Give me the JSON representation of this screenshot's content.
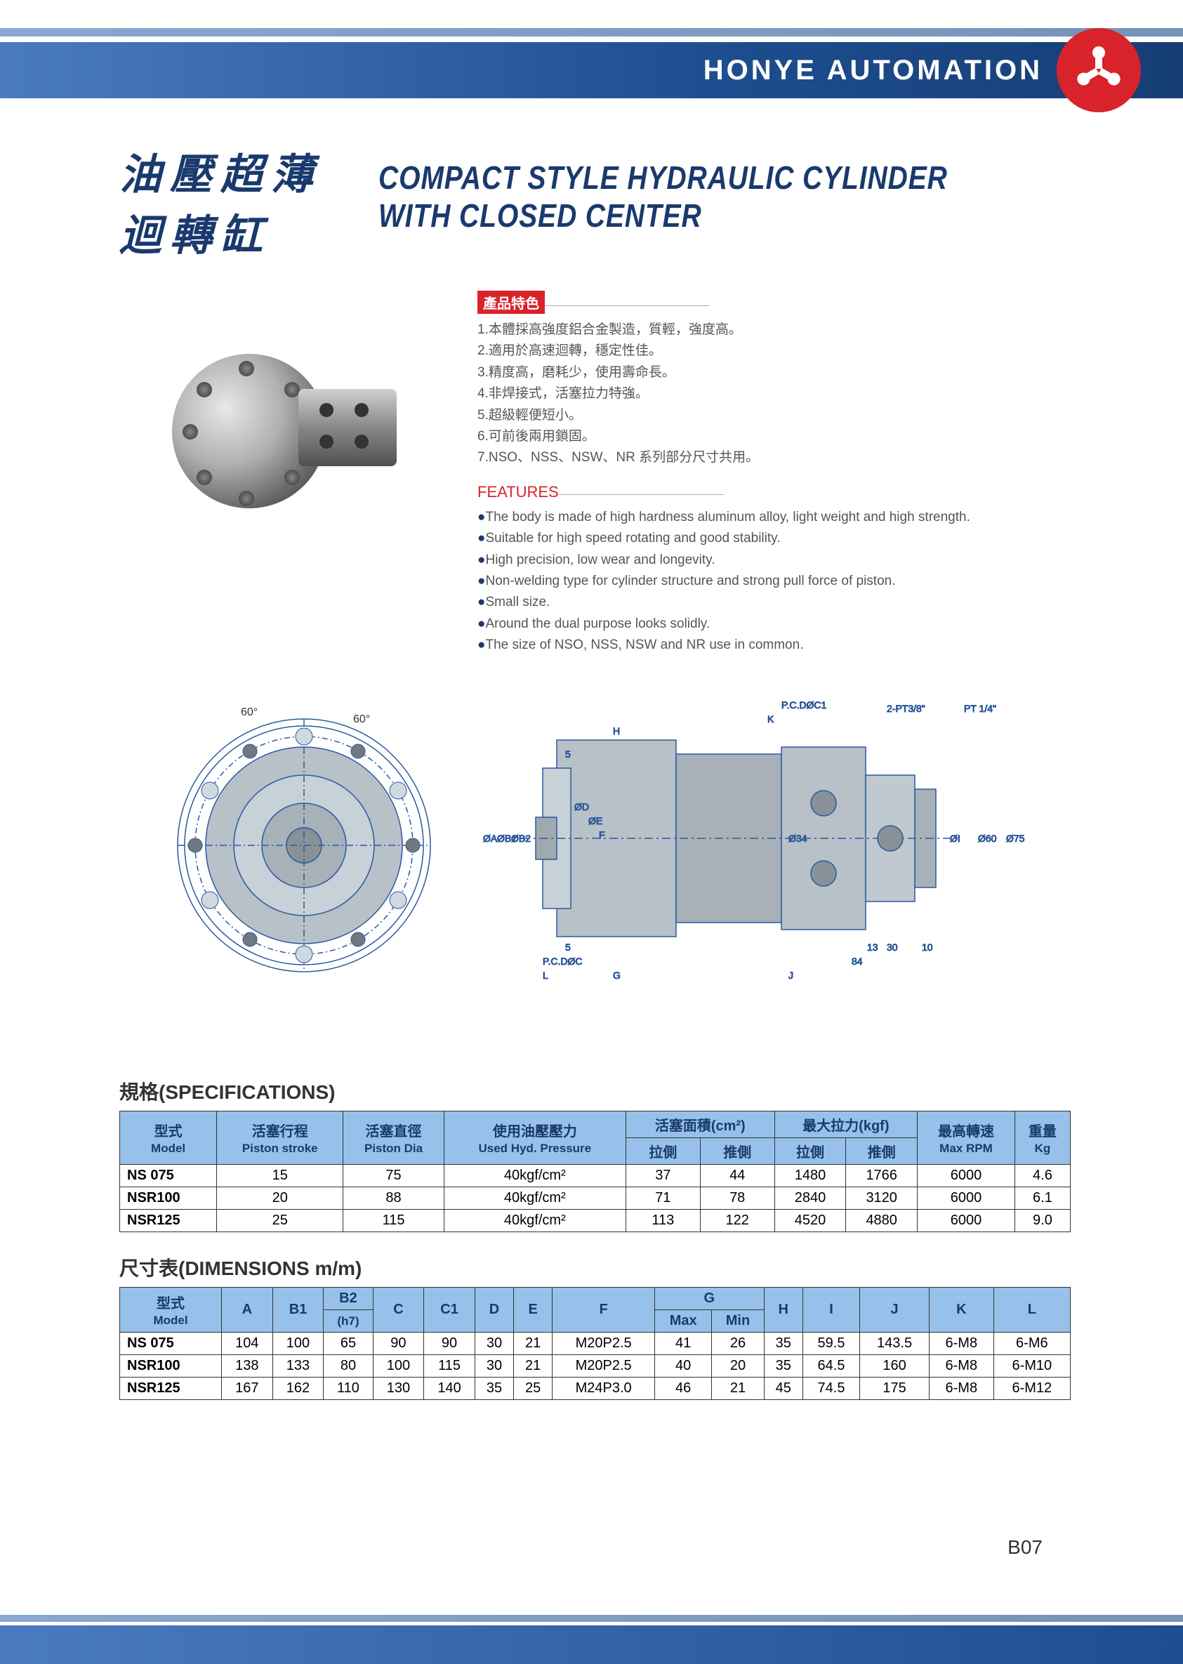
{
  "brand": "HONYE AUTOMATION",
  "title_cn": "油壓超薄迴轉缸",
  "title_en": "COMPACT STYLE HYDRAULIC CYLINDER WITH CLOSED CENTER",
  "feat_cn_label": "產品特色",
  "feat_cn": [
    "1.本體採高強度鋁合金製造，質輕，強度高。",
    "2.適用於高速迴轉，穩定性佳。",
    "3.精度高，磨耗少，使用壽命長。",
    "4.非焊接式，活塞拉力特強。",
    "5.超級輕便短小。",
    "6.可前後兩用鎖固。",
    "7.NSO、NSS、NSW、NR 系列部分尺寸共用。"
  ],
  "feat_en_label": "FEATURES",
  "feat_en": [
    "The body is made of high hardness aluminum alloy, light weight and high strength.",
    "Suitable for high speed rotating and good stability.",
    "High precision, low wear and longevity.",
    "Non-welding type for cylinder structure and strong pull force of piston.",
    "Small size.",
    "Around the dual purpose looks solidly.",
    "The size of NSO, NSS, NSW and NR use in common."
  ],
  "dash_line": "----------------------------------------------------------------",
  "diagram": {
    "labels": [
      "P.C.DØC1",
      "K",
      "2-PT3/8\"",
      "PT 1/4\"",
      "H",
      "5",
      "ØA",
      "ØB1",
      "ØB2",
      "ØD",
      "ØE",
      "F",
      "Ø34",
      "ØI",
      "Ø60",
      "Ø75",
      "P.C.DØC",
      "L",
      "G",
      "5",
      "13",
      "30",
      "10",
      "84",
      "J",
      "60°",
      "60°"
    ],
    "colors": {
      "line": "#2a5aa0",
      "fill": "#9aa6b0",
      "dim": "#2a5aa0",
      "text": "#333"
    }
  },
  "spec_title": "規格(SPECIFICATIONS)",
  "spec_headers": {
    "model_cn": "型式",
    "model_en": "Model",
    "stroke_cn": "活塞行程",
    "stroke_en": "Piston stroke",
    "dia_cn": "活塞直徑",
    "dia_en": "Piston Dia",
    "press_cn": "使用油壓壓力",
    "press_en": "Used Hyd. Pressure",
    "area_cn": "活塞面積(cm²)",
    "force_cn": "最大拉力(kgf)",
    "rpm_cn": "最高轉速",
    "rpm_en": "Max RPM",
    "wt_cn": "重量",
    "wt_en": "Kg",
    "pull": "拉側",
    "push": "推側"
  },
  "spec_rows": [
    {
      "model": "NS 075",
      "stroke": "15",
      "dia": "75",
      "press": "40kgf/cm²",
      "a_pull": "37",
      "a_push": "44",
      "f_pull": "1480",
      "f_push": "1766",
      "rpm": "6000",
      "wt": "4.6"
    },
    {
      "model": "NSR100",
      "stroke": "20",
      "dia": "88",
      "press": "40kgf/cm²",
      "a_pull": "71",
      "a_push": "78",
      "f_pull": "2840",
      "f_push": "3120",
      "rpm": "6000",
      "wt": "6.1"
    },
    {
      "model": "NSR125",
      "stroke": "25",
      "dia": "115",
      "press": "40kgf/cm²",
      "a_pull": "113",
      "a_push": "122",
      "f_pull": "4520",
      "f_push": "4880",
      "rpm": "6000",
      "wt": "9.0"
    }
  ],
  "dim_title": "尺寸表(DIMENSIONS m/m)",
  "dim_headers": {
    "model_cn": "型式",
    "model_en": "Model",
    "cols": [
      "A",
      "B1",
      "B2",
      "C",
      "C1",
      "D",
      "E",
      "F",
      "G",
      "H",
      "I",
      "J",
      "K",
      "L"
    ],
    "b2_sub": "(h7)",
    "g_max": "Max",
    "g_min": "Min"
  },
  "dim_rows": [
    {
      "model": "NS 075",
      "v": [
        "104",
        "100",
        "65",
        "90",
        "90",
        "30",
        "21",
        "M20P2.5",
        "41",
        "26",
        "35",
        "59.5",
        "143.5",
        "6-M8",
        "6-M6"
      ]
    },
    {
      "model": "NSR100",
      "v": [
        "138",
        "133",
        "80",
        "100",
        "115",
        "30",
        "21",
        "M20P2.5",
        "40",
        "20",
        "35",
        "64.5",
        "160",
        "6-M8",
        "6-M10"
      ]
    },
    {
      "model": "NSR125",
      "v": [
        "167",
        "162",
        "110",
        "130",
        "140",
        "35",
        "25",
        "M24P3.0",
        "46",
        "21",
        "45",
        "74.5",
        "175",
        "6-M8",
        "6-M12"
      ]
    }
  ],
  "page_num": "B07"
}
